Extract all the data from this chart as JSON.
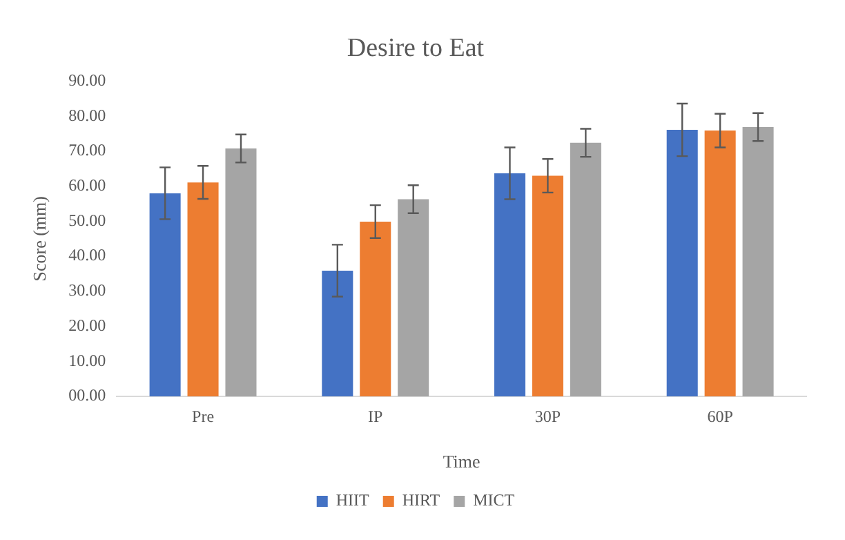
{
  "chart_data": {
    "type": "bar",
    "title": "Desire to Eat",
    "xlabel": "Time",
    "ylabel": "Score (mm)",
    "categories": [
      "Pre",
      "IP",
      "30P",
      "60P"
    ],
    "series": [
      {
        "name": "HIIT",
        "color": "#4472c4",
        "values": [
          58.0,
          35.9,
          63.7,
          76.1
        ],
        "errors": [
          7.4,
          7.4,
          7.4,
          7.5
        ]
      },
      {
        "name": "HIRT",
        "color": "#ed7d31",
        "values": [
          61.1,
          49.9,
          63.0,
          75.9
        ],
        "errors": [
          4.7,
          4.7,
          4.8,
          4.8
        ]
      },
      {
        "name": "MICT",
        "color": "#a5a5a5",
        "values": [
          70.8,
          56.3,
          72.4,
          76.9
        ],
        "errors": [
          4.0,
          4.0,
          4.0,
          4.0
        ]
      }
    ],
    "ylim": [
      0,
      90
    ],
    "yticks": [
      {
        "value": 0,
        "label": "00.00"
      },
      {
        "value": 10,
        "label": "10.00"
      },
      {
        "value": 20,
        "label": "20.00"
      },
      {
        "value": 30,
        "label": "30.00"
      },
      {
        "value": 40,
        "label": "40.00"
      },
      {
        "value": 50,
        "label": "50.00"
      },
      {
        "value": 60,
        "label": "60.00"
      },
      {
        "value": 70,
        "label": "70.00"
      },
      {
        "value": 80,
        "label": "80.00"
      },
      {
        "value": 90,
        "label": "90.00"
      }
    ],
    "grid": false,
    "legend": "bottom"
  }
}
